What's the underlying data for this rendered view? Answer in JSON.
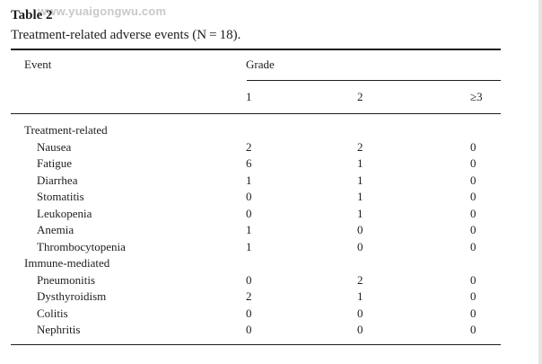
{
  "watermark": "www.yuaigongwu.com",
  "title": "Table 2",
  "caption": "Treatment-related adverse events (N = 18).",
  "header": {
    "event": "Event",
    "grade": "Grade",
    "grade_levels": [
      "1",
      "2",
      "≥3"
    ]
  },
  "sections": [
    {
      "label": "Treatment-related",
      "rows": [
        {
          "event": "Nausea",
          "g1": "2",
          "g2": "2",
          "g3": "0"
        },
        {
          "event": "Fatigue",
          "g1": "6",
          "g2": "1",
          "g3": "0"
        },
        {
          "event": "Diarrhea",
          "g1": "1",
          "g2": "1",
          "g3": "0"
        },
        {
          "event": "Stomatitis",
          "g1": "0",
          "g2": "1",
          "g3": "0"
        },
        {
          "event": "Leukopenia",
          "g1": "0",
          "g2": "1",
          "g3": "0"
        },
        {
          "event": "Anemia",
          "g1": "1",
          "g2": "0",
          "g3": "0"
        },
        {
          "event": "Thrombocytopenia",
          "g1": "1",
          "g2": "0",
          "g3": "0"
        }
      ]
    },
    {
      "label": "Immune-mediated",
      "rows": [
        {
          "event": "Pneumonitis",
          "g1": "0",
          "g2": "2",
          "g3": "0"
        },
        {
          "event": "Dysthyroidism",
          "g1": "2",
          "g2": "1",
          "g3": "0"
        },
        {
          "event": "Colitis",
          "g1": "0",
          "g2": "0",
          "g3": "0"
        },
        {
          "event": "Nephritis",
          "g1": "0",
          "g2": "0",
          "g3": "0"
        }
      ]
    }
  ]
}
